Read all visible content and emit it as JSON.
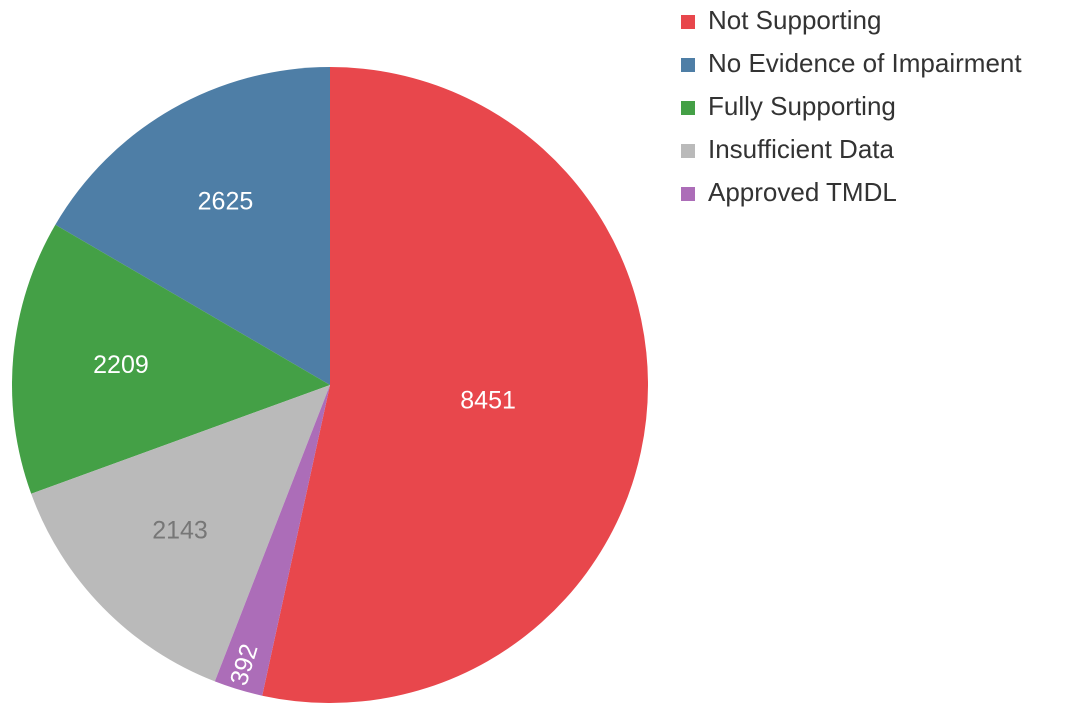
{
  "chart_data": {
    "type": "pie",
    "categories": [
      "Not Supporting",
      "No Evidence of Impairment",
      "Fully Supporting",
      "Insufficient Data",
      "Approved TMDL"
    ],
    "values": [
      8451,
      2625,
      2209,
      2143,
      392
    ],
    "colors": [
      "#e8474c",
      "#4e7ea6",
      "#44a046",
      "#bababa",
      "#ac6db8"
    ],
    "label_colors": [
      "#ffffff",
      "#ffffff",
      "#ffffff",
      "#777777",
      "#ffffff"
    ],
    "legend": "top-right"
  }
}
